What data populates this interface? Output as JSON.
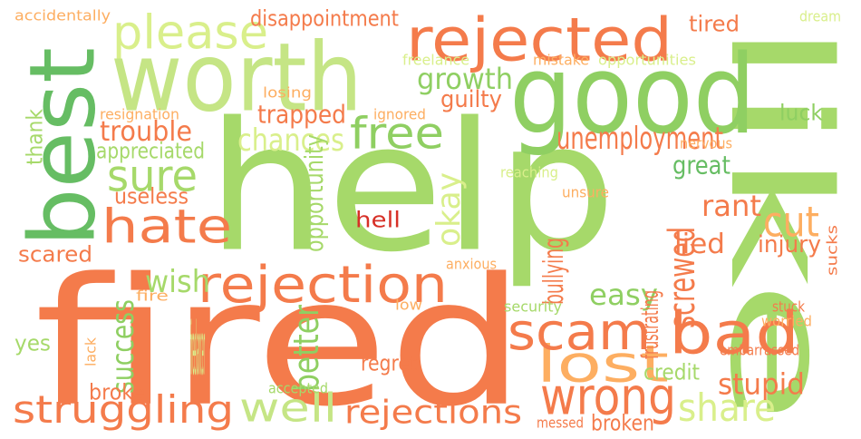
{
  "words": [
    {
      "text": "help",
      "color": "#a6d96a",
      "rot": 0
    },
    {
      "text": "fired",
      "color": "#f47b4b",
      "rot": 0
    },
    {
      "text": "like",
      "color": "#a6d96a",
      "rot": 90
    },
    {
      "text": "worth",
      "color": "#c5e585",
      "rot": 0
    },
    {
      "text": "good",
      "color": "#8fcf62",
      "rot": 0
    },
    {
      "text": "best",
      "color": "#66bd63",
      "rot": -90
    },
    {
      "text": "rejected",
      "color": "#f47b4b",
      "rot": 0
    },
    {
      "text": "please",
      "color": "#d9ef8b",
      "rot": 0
    },
    {
      "text": "rejection",
      "color": "#f47b4b",
      "rot": 0
    },
    {
      "text": "hate",
      "color": "#f47b4b",
      "rot": 0
    },
    {
      "text": "bad",
      "color": "#f47b4b",
      "rot": 0
    },
    {
      "text": "lost",
      "color": "#fdae61",
      "rot": 0
    },
    {
      "text": "scam",
      "color": "#f47b4b",
      "rot": 0
    },
    {
      "text": "wrong",
      "color": "#f47b4b",
      "rot": 0
    },
    {
      "text": "well",
      "color": "#c5e585",
      "rot": 0
    },
    {
      "text": "free",
      "color": "#8fcf62",
      "rot": 0
    },
    {
      "text": "sure",
      "color": "#a6d96a",
      "rot": 0
    },
    {
      "text": "struggling",
      "color": "#f47b4b",
      "rot": 0
    },
    {
      "text": "rejections",
      "color": "#f47b4b",
      "rot": 0
    },
    {
      "text": "share",
      "color": "#d9ef8b",
      "rot": 0
    },
    {
      "text": "screwed",
      "color": "#f47b4b",
      "rot": -90
    },
    {
      "text": "cut",
      "color": "#fdae61",
      "rot": 0
    },
    {
      "text": "success",
      "color": "#8fcf62",
      "rot": -90
    },
    {
      "text": "unemployment",
      "color": "#f47b4b",
      "rot": 0
    },
    {
      "text": "chances",
      "color": "#d9ef8b",
      "rot": 0
    },
    {
      "text": "okay",
      "color": "#d9ef8b",
      "rot": -90
    },
    {
      "text": "growth",
      "color": "#8fcf62",
      "rot": 0
    },
    {
      "text": "trouble",
      "color": "#f47b4b",
      "rot": 0
    },
    {
      "text": "disappointment",
      "color": "#f47b4b",
      "rot": 0
    },
    {
      "text": "wish",
      "color": "#a6d96a",
      "rot": 0
    },
    {
      "text": "better",
      "color": "#8fcf62",
      "rot": -90
    },
    {
      "text": "easy",
      "color": "#8fcf62",
      "rot": 0
    },
    {
      "text": "rant",
      "color": "#f47b4b",
      "rot": 0
    },
    {
      "text": "lied",
      "color": "#f47b4b",
      "rot": 0
    },
    {
      "text": "injury",
      "color": "#f47b4b",
      "rot": 0
    },
    {
      "text": "great",
      "color": "#66bd63",
      "rot": 0
    },
    {
      "text": "stupid",
      "color": "#f47b4b",
      "rot": 0
    },
    {
      "text": "trapped",
      "color": "#f47b4b",
      "rot": 0
    },
    {
      "text": "thank",
      "color": "#a6d96a",
      "rot": -90
    },
    {
      "text": "appreciated",
      "color": "#a6d96a",
      "rot": 0
    },
    {
      "text": "guilty",
      "color": "#f47b4b",
      "rot": 0
    },
    {
      "text": "useless",
      "color": "#f47b4b",
      "rot": 0
    },
    {
      "text": "hell",
      "color": "#d73027",
      "rot": 0
    },
    {
      "text": "opportunity",
      "color": "#a6d96a",
      "rot": -90
    },
    {
      "text": "bullying",
      "color": "#f47b4b",
      "rot": -90
    },
    {
      "text": "frustrating",
      "color": "#f47b4b",
      "rot": -90
    },
    {
      "text": "regret",
      "color": "#f47b4b",
      "rot": 0
    },
    {
      "text": "credit",
      "color": "#a6d96a",
      "rot": 0
    },
    {
      "text": "broken",
      "color": "#f47b4b",
      "rot": 0
    },
    {
      "text": "broke",
      "color": "#f47b4b",
      "rot": 0
    },
    {
      "text": "scared",
      "color": "#f47b4b",
      "rot": 0
    },
    {
      "text": "tired",
      "color": "#f47b4b",
      "rot": 0
    },
    {
      "text": "luck",
      "color": "#8fcf62",
      "rot": 0
    },
    {
      "text": "yes",
      "color": "#a6d96a",
      "rot": 0
    },
    {
      "text": "accidentally",
      "color": "#fdae61",
      "rot": 0
    },
    {
      "text": "freelance",
      "color": "#d9ef8b",
      "rot": 0
    },
    {
      "text": "mistake",
      "color": "#fdae61",
      "rot": 0
    },
    {
      "text": "opportunities",
      "color": "#d9ef8b",
      "rot": 0
    },
    {
      "text": "dream",
      "color": "#d9ef8b",
      "rot": 0
    },
    {
      "text": "losing",
      "color": "#fdae61",
      "rot": 0
    },
    {
      "text": "resignation",
      "color": "#fdae61",
      "rot": 0
    },
    {
      "text": "ignored",
      "color": "#fdae61",
      "rot": 0
    },
    {
      "text": "nervous",
      "color": "#fdae61",
      "rot": 0
    },
    {
      "text": "reaching",
      "color": "#d9ef8b",
      "rot": 0
    },
    {
      "text": "unsure",
      "color": "#fdae61",
      "rot": 0
    },
    {
      "text": "anxious",
      "color": "#fdae61",
      "rot": 0
    },
    {
      "text": "fire",
      "color": "#fdae61",
      "rot": 0
    },
    {
      "text": "low",
      "color": "#fdae61",
      "rot": 0
    },
    {
      "text": "security",
      "color": "#a6d96a",
      "rot": 0
    },
    {
      "text": "stuck",
      "color": "#f47b4b",
      "rot": 0
    },
    {
      "text": "worried",
      "color": "#fdae61",
      "rot": 0
    },
    {
      "text": "sucks",
      "color": "#f47b4b",
      "rot": -90
    },
    {
      "text": "freelancer",
      "color": "#d9ef8b",
      "rot": 0
    },
    {
      "text": "lack",
      "color": "#fdae61",
      "rot": -90
    },
    {
      "text": "accepted",
      "color": "#a6d96a",
      "rot": 0
    },
    {
      "text": "embarrassed",
      "color": "#f47b4b",
      "rot": 0
    },
    {
      "text": "messed",
      "color": "#f47b4b",
      "rot": 0
    }
  ]
}
